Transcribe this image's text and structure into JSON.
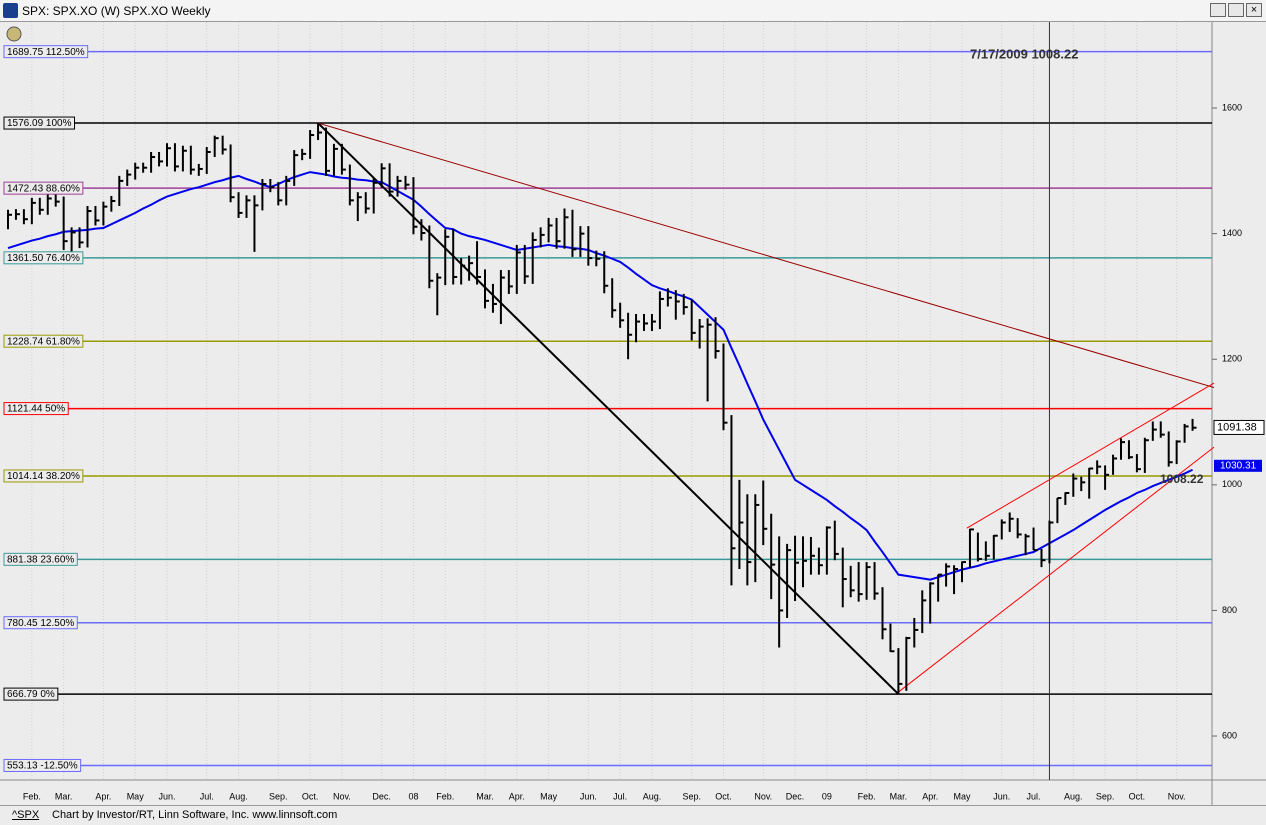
{
  "window_title": "SPX: SPX.XO (W) SPX.XO Weekly",
  "status_bar": {
    "symbol": "^SPX",
    "credit": "Chart by Investor/RT, Linn Software, Inc. www.linnsoft.com"
  },
  "chart_data": {
    "type": "ohlc",
    "ylim": [
      530,
      1737
    ],
    "yticks": [
      1600,
      1400,
      1200,
      1000,
      800,
      600
    ],
    "categories": [
      null,
      null,
      null,
      "Feb.",
      null,
      null,
      null,
      "Mar.",
      null,
      null,
      null,
      null,
      "Apr.",
      null,
      null,
      null,
      "May",
      null,
      null,
      null,
      "Jun.",
      null,
      null,
      null,
      null,
      "Jul.",
      null,
      null,
      null,
      "Aug.",
      null,
      null,
      null,
      null,
      "Sep.",
      null,
      null,
      null,
      "Oct.",
      null,
      null,
      null,
      "Nov.",
      null,
      null,
      null,
      null,
      "Dec.",
      null,
      null,
      null,
      "08",
      null,
      null,
      null,
      "Feb.",
      null,
      null,
      null,
      null,
      "Mar.",
      null,
      null,
      null,
      "Apr.",
      null,
      null,
      null,
      "May",
      null,
      null,
      null,
      null,
      "Jun.",
      null,
      null,
      null,
      "Jul.",
      null,
      null,
      null,
      "Aug.",
      null,
      null,
      null,
      null,
      "Sep.",
      null,
      null,
      null,
      "Oct.",
      null,
      null,
      null,
      null,
      "Nov.",
      null,
      null,
      null,
      "Dec.",
      null,
      null,
      null,
      "09",
      null,
      null,
      null,
      null,
      "Feb.",
      null,
      null,
      null,
      "Mar.",
      null,
      null,
      null,
      "Apr.",
      null,
      null,
      null,
      "May",
      null,
      null,
      null,
      null,
      "Jun.",
      null,
      null,
      null,
      "Jul.",
      null,
      null,
      null,
      null,
      "Aug.",
      null,
      null,
      null,
      "Sep.",
      null,
      null,
      null,
      "Oct.",
      null,
      null,
      null,
      null,
      "Nov.",
      null,
      null
    ],
    "bar_color": "#000000",
    "high": [
      1438,
      1439,
      1439,
      1457,
      1457,
      1464,
      1464,
      1459,
      1410,
      1410,
      1444,
      1444,
      1451,
      1460,
      1492,
      1502,
      1513,
      1513,
      1530,
      1530,
      1544,
      1544,
      1540,
      1540,
      1511,
      1538,
      1556,
      1556,
      1542,
      1466,
      1461,
      1461,
      1487,
      1487,
      1482,
      1492,
      1533,
      1535,
      1565,
      1576,
      1569,
      1543,
      1543,
      1510,
      1466,
      1466,
      1489,
      1512,
      1512,
      1492,
      1492,
      1490,
      1423,
      1413,
      1337,
      1407,
      1407,
      1361,
      1365,
      1388,
      1343,
      1320,
      1342,
      1342,
      1382,
      1382,
      1402,
      1410,
      1425,
      1425,
      1440,
      1438,
      1412,
      1412,
      1373,
      1372,
      1329,
      1290,
      1274,
      1272,
      1272,
      1272,
      1308,
      1313,
      1310,
      1304,
      1295,
      1264,
      1265,
      1267,
      1225,
      1111,
      1008,
      985,
      985,
      1007,
      954,
      918,
      906,
      919,
      918,
      917,
      900,
      934,
      943,
      900,
      871,
      877,
      877,
      877,
      837,
      779,
      740,
      758,
      788,
      832,
      845,
      857,
      875,
      872,
      878,
      930,
      924,
      910,
      920,
      945,
      956,
      947,
      922,
      932,
      898,
      943,
      979,
      988,
      1018,
      1013,
      1027,
      1039,
      1031,
      1048,
      1074,
      1071,
      1049,
      1075,
      1101,
      1101,
      1085,
      1071,
      1097,
      1105
    ],
    "low": [
      1407,
      1422,
      1415,
      1415,
      1430,
      1430,
      1443,
      1374,
      1364,
      1377,
      1378,
      1413,
      1413,
      1435,
      1444,
      1476,
      1486,
      1497,
      1497,
      1507,
      1507,
      1499,
      1499,
      1494,
      1492,
      1495,
      1522,
      1526,
      1450,
      1425,
      1425,
      1371,
      1437,
      1466,
      1445,
      1445,
      1476,
      1517,
      1519,
      1549,
      1492,
      1492,
      1494,
      1445,
      1420,
      1432,
      1432,
      1473,
      1459,
      1459,
      1470,
      1399,
      1389,
      1313,
      1270,
      1318,
      1319,
      1319,
      1325,
      1319,
      1281,
      1274,
      1256,
      1304,
      1304,
      1320,
      1320,
      1378,
      1386,
      1376,
      1376,
      1363,
      1363,
      1349,
      1348,
      1305,
      1266,
      1250,
      1200,
      1227,
      1245,
      1245,
      1248,
      1284,
      1263,
      1271,
      1230,
      1217,
      1133,
      1201,
      1087,
      840,
      866,
      840,
      845,
      904,
      818,
      741,
      788,
      815,
      837,
      857,
      857,
      857,
      880,
      805,
      821,
      814,
      817,
      817,
      754,
      734,
      667,
      672,
      741,
      764,
      779,
      814,
      838,
      826,
      845,
      868,
      878,
      879,
      881,
      913,
      925,
      915,
      888,
      896,
      869,
      875,
      939,
      968,
      981,
      990,
      978,
      1017,
      992,
      1016,
      1040,
      1041,
      1020,
      1019,
      1070,
      1075,
      1029,
      1033,
      1067,
      1086
    ],
    "close": [
      1430,
      1431,
      1423,
      1449,
      1438,
      1456,
      1451,
      1388,
      1402,
      1386,
      1436,
      1421,
      1443,
      1452,
      1484,
      1494,
      1505,
      1505,
      1522,
      1515,
      1536,
      1507,
      1532,
      1502,
      1503,
      1530,
      1552,
      1534,
      1458,
      1433,
      1453,
      1445,
      1479,
      1474,
      1453,
      1484,
      1525,
      1527,
      1557,
      1561,
      1500,
      1535,
      1502,
      1453,
      1458,
      1440,
      1481,
      1504,
      1467,
      1484,
      1478,
      1411,
      1401,
      1325,
      1330,
      1395,
      1331,
      1349,
      1353,
      1331,
      1293,
      1288,
      1330,
      1316,
      1370,
      1332,
      1390,
      1398,
      1413,
      1388,
      1426,
      1375,
      1400,
      1361,
      1360,
      1317,
      1278,
      1262,
      1239,
      1260,
      1257,
      1260,
      1296,
      1298,
      1292,
      1283,
      1242,
      1252,
      1255,
      1213,
      1099,
      899,
      940,
      877,
      968,
      930,
      873,
      800,
      896,
      876,
      879,
      887,
      872,
      932,
      890,
      850,
      832,
      826,
      869,
      827,
      770,
      735,
      683,
      756,
      769,
      816,
      843,
      857,
      870,
      866,
      877,
      929,
      882,
      887,
      919,
      940,
      946,
      921,
      918,
      896,
      880,
      940,
      979,
      987,
      1010,
      1004,
      1026,
      1029,
      1016,
      1042,
      1068,
      1044,
      1025,
      1071,
      1088,
      1080,
      1036,
      1069,
      1093,
      1091
    ],
    "moving_average": {
      "color": "#0000ee",
      "values": [
        1377,
        1381,
        1385,
        1389,
        1392,
        1396,
        1399,
        1403,
        1404,
        1405,
        1406,
        1408,
        1409,
        1415,
        1421,
        1427,
        1433,
        1440,
        1446,
        1453,
        1459,
        1463,
        1467,
        1471,
        1474,
        1478,
        1482,
        1485,
        1489,
        1492,
        1487,
        1483,
        1478,
        1474,
        1479,
        1485,
        1490,
        1494,
        1498,
        1496,
        1494,
        1491,
        1489,
        1488,
        1486,
        1485,
        1483,
        1482,
        1475,
        1468,
        1461,
        1454,
        1443,
        1431,
        1420,
        1409,
        1407,
        1400,
        1396,
        1393,
        1390,
        1386,
        1382,
        1378,
        1374,
        1376,
        1378,
        1380,
        1382,
        1380,
        1379,
        1377,
        1376,
        1374,
        1369,
        1365,
        1360,
        1355,
        1346,
        1336,
        1327,
        1318,
        1313,
        1309,
        1304,
        1300,
        1295,
        1283,
        1271,
        1259,
        1247,
        1218,
        1190,
        1161,
        1133,
        1104,
        1080,
        1056,
        1032,
        1008,
        1000,
        992,
        984,
        976,
        966,
        957,
        947,
        938,
        928,
        910,
        893,
        875,
        857,
        855,
        853,
        851,
        849,
        853,
        857,
        861,
        865,
        868,
        871,
        875,
        878,
        881,
        884,
        887,
        890,
        893,
        900,
        907,
        914,
        921,
        928,
        936,
        944,
        952,
        960,
        967,
        974,
        980,
        987,
        992,
        998,
        1003,
        1008,
        1013,
        1018,
        1024
      ]
    },
    "levels": [
      {
        "value": 1689.75,
        "label": "1689.75 112.50%",
        "color": "#6b6bff"
      },
      {
        "value": 1576.09,
        "label": "1576.09 100%",
        "color": "#000000"
      },
      {
        "value": 1472.43,
        "label": "1472.43 88.60%",
        "color": "#a0409a"
      },
      {
        "value": 1361.5,
        "label": "1361.50 76.40%",
        "color": "#3a9a9a"
      },
      {
        "value": 1228.74,
        "label": "1228.74 61.80%",
        "color": "#9a9a00"
      },
      {
        "value": 1121.44,
        "label": "1121.44 50%",
        "color": "#ff0000"
      },
      {
        "value": 1014.14,
        "label": "1014.14 38.20%",
        "color": "#9a9a00"
      },
      {
        "value": 881.38,
        "label": "881.38 23.60%",
        "color": "#3a9a9a"
      },
      {
        "value": 780.45,
        "label": "780.45 12.50%",
        "color": "#6b6bff"
      },
      {
        "value": 666.79,
        "label": "666.79 0%",
        "color": "#000000"
      },
      {
        "value": 553.13,
        "label": "553.13 -12.50%",
        "color": "#6b6bff"
      }
    ],
    "trend_lines": [
      {
        "color": "#000000",
        "from": [
          39,
          1576.09
        ],
        "to": [
          112,
          666.79
        ]
      },
      {
        "color": "#990000",
        "from": [
          39,
          1576.09
        ],
        "to": [
          151.7,
          1155
        ]
      },
      {
        "color": "#ff0000",
        "from": [
          112,
          670
        ],
        "to": [
          151.7,
          1060
        ]
      },
      {
        "color": "#ff0000",
        "from": [
          120.6,
          931
        ],
        "to": [
          151.7,
          1162
        ]
      }
    ],
    "cursor": {
      "label": "7/17/2009 1008.22",
      "x": 131,
      "value": 1008.22
    },
    "last_price": 1091.38,
    "last_ma": 1030.31
  }
}
